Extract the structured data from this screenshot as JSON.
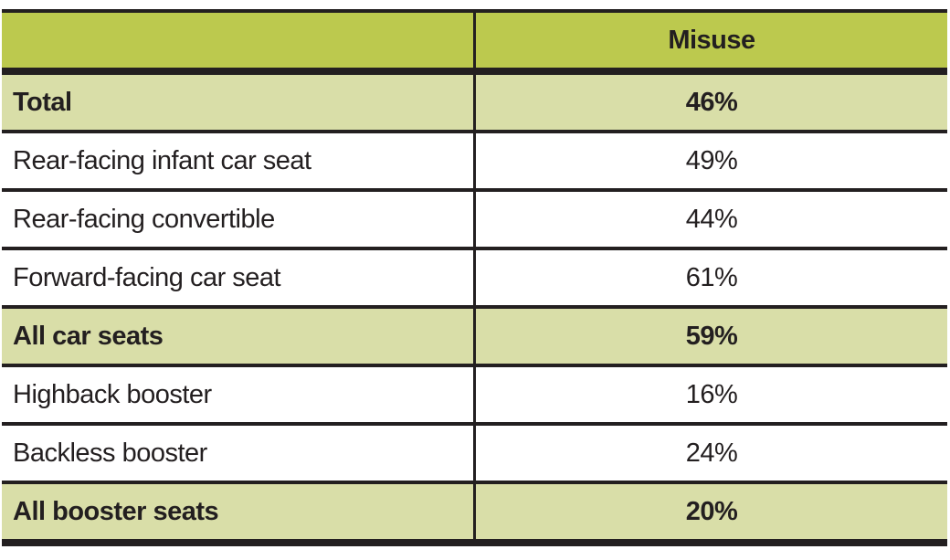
{
  "table": {
    "header": {
      "label": "",
      "value_column": "Misuse"
    },
    "rows": [
      {
        "label": "Total",
        "value": "46%",
        "emphasis": true
      },
      {
        "label": "Rear-facing infant car seat",
        "value": "49%",
        "emphasis": false
      },
      {
        "label": "Rear-facing convertible",
        "value": "44%",
        "emphasis": false
      },
      {
        "label": "Forward-facing car seat",
        "value": "61%",
        "emphasis": false
      },
      {
        "label": "All car seats",
        "value": "59%",
        "emphasis": true
      },
      {
        "label": "Highback booster",
        "value": "16%",
        "emphasis": false
      },
      {
        "label": "Backless booster",
        "value": "24%",
        "emphasis": false
      },
      {
        "label": "All booster seats",
        "value": "20%",
        "emphasis": true
      }
    ],
    "colors": {
      "header_bg": "#bcc94e",
      "highlight_bg": "#d9dea8",
      "row_bg": "#ffffff",
      "border": "#231f20",
      "text": "#231f20"
    }
  },
  "chart_data": {
    "type": "table",
    "title": "",
    "columns": [
      "",
      "Misuse"
    ],
    "categories": [
      "Total",
      "Rear-facing infant car seat",
      "Rear-facing convertible",
      "Forward-facing car seat",
      "All car seats",
      "Highback booster",
      "Backless booster",
      "All booster seats"
    ],
    "values": [
      46,
      49,
      44,
      61,
      59,
      16,
      24,
      20
    ],
    "unit": "%",
    "emphasized_categories": [
      "Total",
      "All car seats",
      "All booster seats"
    ]
  }
}
